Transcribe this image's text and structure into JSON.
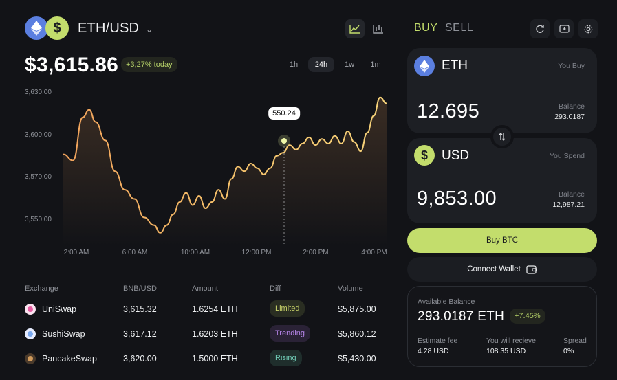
{
  "header": {
    "pair": "ETH/USD",
    "price": "$3,615.86",
    "change_today": "+3,27% today",
    "timeframes": [
      "1h",
      "24h",
      "1w",
      "1m"
    ],
    "active_timeframe": "24h",
    "icons": [
      "line-chart-icon",
      "candle-chart-icon"
    ]
  },
  "chart_data": {
    "type": "line",
    "y_ticks": [
      "3,630.00",
      "3,600.00",
      "3,570.00",
      "3,550.00"
    ],
    "x_ticks": [
      "2:00 AM",
      "6:00 AM",
      "10:00 AM",
      "12:00 PM",
      "2:00 PM",
      "4:00 PM"
    ],
    "tooltip": "550.24",
    "ylim": [
      3535,
      3635
    ],
    "series": [
      {
        "points": [
          [
            0.0,
            3591
          ],
          [
            0.03,
            3587
          ],
          [
            0.06,
            3615
          ],
          [
            0.08,
            3620
          ],
          [
            0.1,
            3612
          ],
          [
            0.13,
            3600
          ],
          [
            0.16,
            3580
          ],
          [
            0.19,
            3568
          ],
          [
            0.22,
            3562
          ],
          [
            0.25,
            3550
          ],
          [
            0.28,
            3545
          ],
          [
            0.3,
            3540
          ],
          [
            0.32,
            3545
          ],
          [
            0.34,
            3552
          ],
          [
            0.36,
            3560
          ],
          [
            0.38,
            3566
          ],
          [
            0.4,
            3558
          ],
          [
            0.42,
            3564
          ],
          [
            0.44,
            3556
          ],
          [
            0.46,
            3560
          ],
          [
            0.48,
            3568
          ],
          [
            0.5,
            3562
          ],
          [
            0.52,
            3575
          ],
          [
            0.54,
            3583
          ],
          [
            0.56,
            3580
          ],
          [
            0.58,
            3585
          ],
          [
            0.6,
            3582
          ],
          [
            0.62,
            3578
          ],
          [
            0.64,
            3582
          ],
          [
            0.66,
            3590
          ],
          [
            0.68,
            3592
          ],
          [
            0.7,
            3597
          ],
          [
            0.72,
            3594
          ],
          [
            0.74,
            3598
          ],
          [
            0.76,
            3602
          ],
          [
            0.78,
            3597
          ],
          [
            0.8,
            3601
          ],
          [
            0.82,
            3598
          ],
          [
            0.84,
            3603
          ],
          [
            0.86,
            3598
          ],
          [
            0.88,
            3606
          ],
          [
            0.9,
            3599
          ],
          [
            0.92,
            3593
          ],
          [
            0.94,
            3605
          ],
          [
            0.96,
            3616
          ],
          [
            0.98,
            3628
          ],
          [
            1.0,
            3624
          ]
        ]
      }
    ]
  },
  "table": {
    "headers": [
      "Exchange",
      "BNB/USD",
      "Amount",
      "Diff",
      "Volume"
    ],
    "rows": [
      {
        "exchange": "UniSwap",
        "price": "3,615.32",
        "amount": "1.6254 ETH",
        "diff": "Limited",
        "volume": "$5,875.00",
        "diff_color": "#c9d36a",
        "diff_bg": "#2a2e22",
        "icon_color": "#e85da2"
      },
      {
        "exchange": "SushiSwap",
        "price": "3,617.12",
        "amount": "1.6203 ETH",
        "diff": "Trending",
        "volume": "$5,860.12",
        "diff_color": "#b483e6",
        "diff_bg": "#2a2236",
        "icon_color": "#7aa9f0"
      },
      {
        "exchange": "PancakeSwap",
        "price": "3,620.00",
        "amount": "1.5000 ETH",
        "diff": "Rising",
        "volume": "$5,430.00",
        "diff_color": "#6fc9b4",
        "diff_bg": "#1f2e2c",
        "icon_color": "#d19b5c"
      }
    ]
  },
  "panel": {
    "tab_buy": "BUY",
    "tab_sell": "SELL",
    "buy_card": {
      "coin": "ETH",
      "role": "You Buy",
      "amount": "12.695",
      "balance_label": "Balance",
      "balance": "293.0187"
    },
    "spend_card": {
      "coin": "USD",
      "role": "You Spend",
      "amount": "9,853.00",
      "balance_label": "Balance",
      "balance": "12,987.21"
    },
    "buy_button": "Buy BTC",
    "connect_button": "Connect Wallet",
    "available": {
      "label": "Available Balance",
      "value": "293.0187 ETH",
      "change": "+7.45%",
      "fee_label": "Estimate fee",
      "fee": "4.28 USD",
      "receive_label": "You will recieve",
      "receive": "108.35 USD",
      "spread_label": "Spread",
      "spread": "0%"
    }
  },
  "colors": {
    "accent": "#c3dd6c",
    "eth": "#5b7fe0",
    "bg": "#121317"
  }
}
